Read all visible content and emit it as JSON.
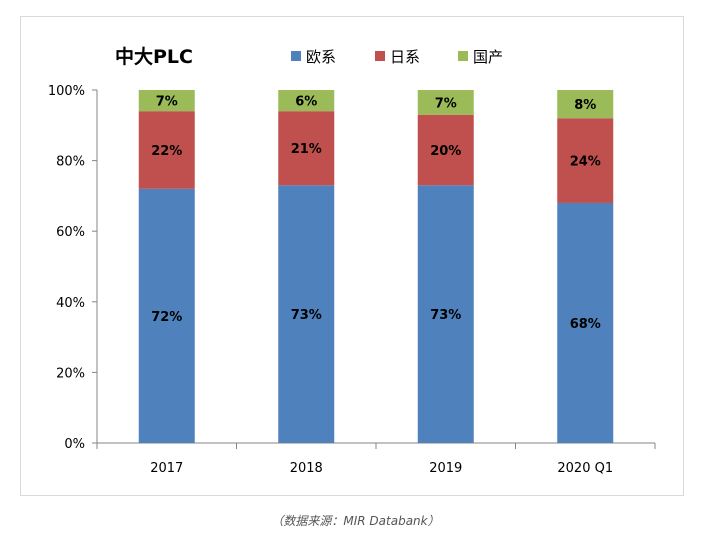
{
  "chart_data": {
    "type": "bar",
    "stacked": true,
    "title": "中大PLC",
    "categories": [
      "2017",
      "2018",
      "2019",
      "2020 Q1"
    ],
    "series": [
      {
        "name": "欧系",
        "color": "#4f81bd",
        "values": [
          72,
          73,
          73,
          68
        ],
        "labels": [
          "72%",
          "73%",
          "73%",
          "68%"
        ]
      },
      {
        "name": "日系",
        "color": "#c0504d",
        "values": [
          22,
          21,
          20,
          24
        ],
        "labels": [
          "22%",
          "21%",
          "20%",
          "24%"
        ]
      },
      {
        "name": "国产",
        "color": "#9bbb59",
        "values": [
          7,
          6,
          7,
          8
        ],
        "labels": [
          "7%",
          "6%",
          "7%",
          "8%"
        ]
      }
    ],
    "ylim": [
      0,
      100
    ],
    "yticks": [
      "0%",
      "20%",
      "40%",
      "60%",
      "80%",
      "100%"
    ],
    "ytick_values": [
      0,
      20,
      40,
      60,
      80,
      100
    ],
    "grid": false,
    "legend_position": "top"
  },
  "source": "（数据来源：MIR Databank）"
}
